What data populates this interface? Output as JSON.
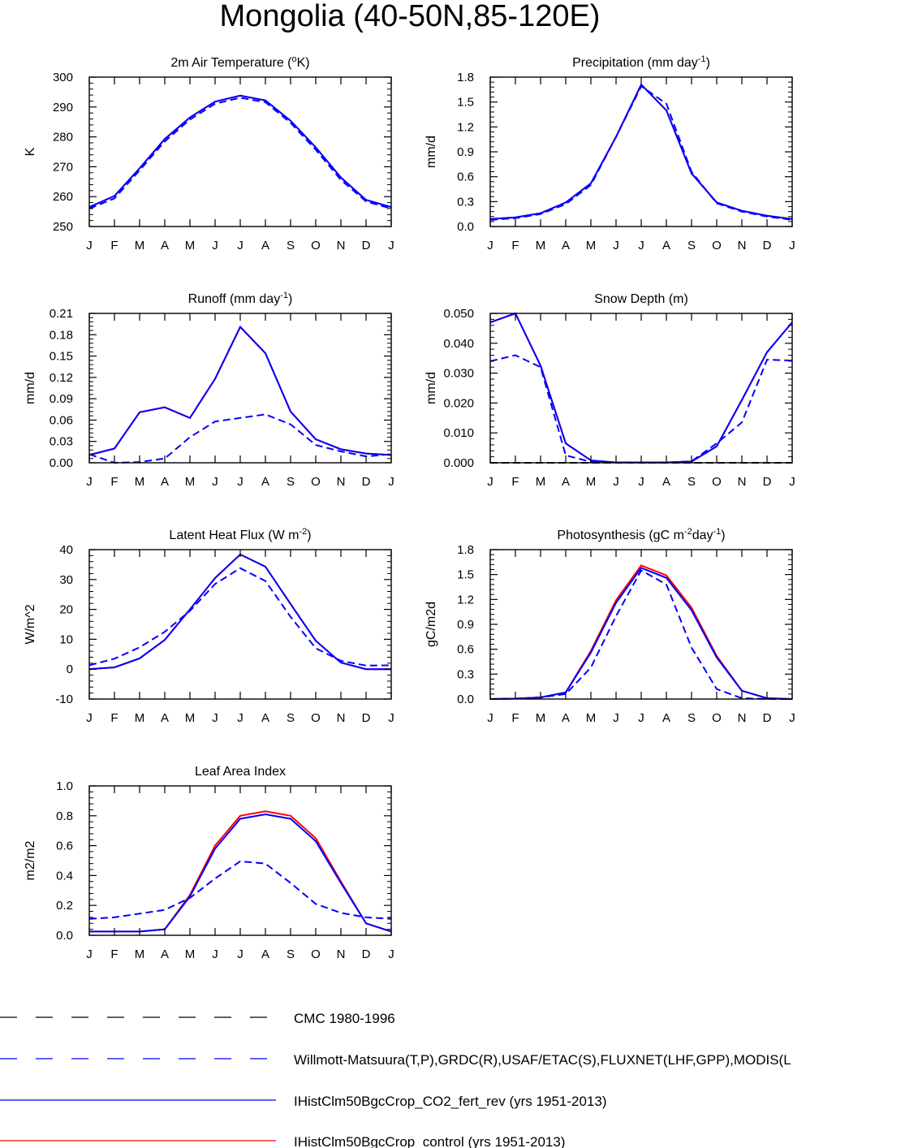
{
  "figure": {
    "title": "Mongolia (40-50N,85-120E)"
  },
  "colors": {
    "blue": "#0000ff",
    "red": "#ff0000",
    "black": "#000000"
  },
  "chart_data": [
    {
      "type": "line",
      "title": "2m Air Temperature (°K)",
      "title_parts": [
        "2m Air Temperature (",
        "o",
        "K)"
      ],
      "ylabel": "K",
      "categories": [
        "J",
        "F",
        "M",
        "A",
        "M",
        "J",
        "J",
        "A",
        "S",
        "O",
        "N",
        "D",
        "J"
      ],
      "ylim": [
        250,
        300
      ],
      "yticks": [
        250,
        260,
        270,
        280,
        290,
        300
      ],
      "ytick_labels": [
        "250",
        "260",
        "270",
        "280",
        "290",
        "300"
      ],
      "series": [
        {
          "name": "IHistClm50BgcCrop_control (yrs 1951-2013)",
          "color": "#ff0000",
          "dash": "solid",
          "values": [
            256.5,
            260.2,
            269.5,
            279.3,
            286.5,
            291.8,
            293.8,
            292.2,
            285.4,
            276.5,
            266.4,
            258.9,
            256.5
          ]
        },
        {
          "name": "IHistClm50BgcCrop_CO2_fert_rev (yrs 1951-2013)",
          "color": "#0000ff",
          "dash": "solid",
          "values": [
            256.5,
            260.2,
            269.5,
            279.3,
            286.5,
            291.8,
            293.8,
            292.2,
            285.4,
            276.5,
            266.4,
            258.9,
            256.5
          ]
        },
        {
          "name": "Willmott-Matsuura(T,P),GRDC(R),USAF/ETAC(S),FLUXNET(LHF,GPP),MODIS(L",
          "color": "#0000ff",
          "dash": "dashed",
          "values": [
            256.0,
            259.4,
            268.8,
            278.5,
            285.8,
            291.1,
            293.1,
            291.6,
            284.7,
            275.7,
            265.6,
            258.4,
            256.0
          ]
        }
      ]
    },
    {
      "type": "line",
      "title": "Precipitation (mm day-1)",
      "title_parts": [
        "Precipitation (mm day",
        "-1",
        ")"
      ],
      "ylabel": "mm/d",
      "categories": [
        "J",
        "F",
        "M",
        "A",
        "M",
        "J",
        "J",
        "A",
        "S",
        "O",
        "N",
        "D",
        "J"
      ],
      "ylim": [
        0.0,
        1.8
      ],
      "yticks": [
        0.0,
        0.3,
        0.6,
        0.9,
        1.2,
        1.5,
        1.8
      ],
      "ytick_labels": [
        "0.0",
        "0.3",
        "0.6",
        "0.9",
        "1.2",
        "1.5",
        "1.8"
      ],
      "series": [
        {
          "name": "IHistClm50BgcCrop_control (yrs 1951-2013)",
          "color": "#ff0000",
          "dash": "solid",
          "values": [
            0.09,
            0.11,
            0.16,
            0.29,
            0.52,
            1.08,
            1.71,
            1.4,
            0.64,
            0.29,
            0.19,
            0.13,
            0.09
          ]
        },
        {
          "name": "IHistClm50BgcCrop_CO2_fert_rev (yrs 1951-2013)",
          "color": "#0000ff",
          "dash": "solid",
          "values": [
            0.09,
            0.11,
            0.16,
            0.29,
            0.52,
            1.08,
            1.71,
            1.4,
            0.64,
            0.29,
            0.19,
            0.13,
            0.09
          ]
        },
        {
          "name": "Willmott-Matsuura(T,P),GRDC(R),USAF/ETAC(S),FLUXNET(LHF,GPP),MODIS(L",
          "color": "#0000ff",
          "dash": "dashed",
          "values": [
            0.08,
            0.1,
            0.15,
            0.27,
            0.5,
            1.08,
            1.69,
            1.48,
            0.66,
            0.28,
            0.18,
            0.12,
            0.08
          ]
        }
      ]
    },
    {
      "type": "line",
      "title": "Runoff (mm day-1)",
      "title_parts": [
        "Runoff (mm day",
        "-1",
        ")"
      ],
      "ylabel": "mm/d",
      "categories": [
        "J",
        "F",
        "M",
        "A",
        "M",
        "J",
        "J",
        "A",
        "S",
        "O",
        "N",
        "D",
        "J"
      ],
      "ylim": [
        0.0,
        0.21
      ],
      "yticks": [
        0.0,
        0.03,
        0.06,
        0.09,
        0.12,
        0.15,
        0.18,
        0.21
      ],
      "ytick_labels": [
        "0.00",
        "0.03",
        "0.06",
        "0.09",
        "0.12",
        "0.15",
        "0.18",
        "0.21"
      ],
      "series": [
        {
          "name": "IHistClm50BgcCrop_control (yrs 1951-2013)",
          "color": "#ff0000",
          "dash": "solid",
          "values": [
            0.011,
            0.02,
            0.071,
            0.078,
            0.063,
            0.118,
            0.191,
            0.154,
            0.072,
            0.033,
            0.019,
            0.013,
            0.011
          ]
        },
        {
          "name": "IHistClm50BgcCrop_CO2_fert_rev (yrs 1951-2013)",
          "color": "#0000ff",
          "dash": "solid",
          "values": [
            0.011,
            0.02,
            0.071,
            0.078,
            0.063,
            0.118,
            0.191,
            0.154,
            0.072,
            0.033,
            0.019,
            0.013,
            0.011
          ]
        },
        {
          "name": "Willmott-Matsuura(T,P),GRDC(R),USAF/ETAC(S),FLUXNET(LHF,GPP),MODIS(L",
          "color": "#0000ff",
          "dash": "dashed",
          "values": [
            0.012,
            0.0,
            0.001,
            0.006,
            0.036,
            0.058,
            0.063,
            0.068,
            0.054,
            0.025,
            0.016,
            0.009,
            0.012
          ]
        }
      ]
    },
    {
      "type": "line",
      "title": "Snow Depth (m)",
      "title_parts": [
        "Snow Depth (m)",
        "",
        ""
      ],
      "ylabel": "mm/d",
      "categories": [
        "J",
        "F",
        "M",
        "A",
        "M",
        "J",
        "J",
        "A",
        "S",
        "O",
        "N",
        "D",
        "J"
      ],
      "ylim": [
        0.0,
        0.05
      ],
      "yticks": [
        0.0,
        0.01,
        0.02,
        0.03,
        0.04,
        0.05
      ],
      "ytick_labels": [
        "0.000",
        "0.010",
        "0.020",
        "0.030",
        "0.040",
        "0.050"
      ],
      "series": [
        {
          "name": "CMC 1980-1996",
          "color": "#000000",
          "dash": "dashed",
          "values": [
            0.0,
            0.0,
            0.0,
            0.0,
            0.0,
            0.0,
            0.0,
            0.0,
            0.0,
            0.0,
            0.0,
            0.0,
            0.0
          ]
        },
        {
          "name": "IHistClm50BgcCrop_control (yrs 1951-2013)",
          "color": "#ff0000",
          "dash": "solid",
          "values": [
            0.047,
            0.05,
            0.0325,
            0.0065,
            0.0008,
            0.0001,
            0.0001,
            0.0001,
            0.0004,
            0.0055,
            0.021,
            0.037,
            0.047
          ]
        },
        {
          "name": "IHistClm50BgcCrop_CO2_fert_rev (yrs 1951-2013)",
          "color": "#0000ff",
          "dash": "solid",
          "values": [
            0.047,
            0.05,
            0.0325,
            0.0065,
            0.0008,
            0.0001,
            0.0001,
            0.0001,
            0.0004,
            0.0055,
            0.021,
            0.037,
            0.047
          ]
        },
        {
          "name": "Willmott-Matsuura(T,P),GRDC(R),USAF/ETAC(S),FLUXNET(LHF,GPP),MODIS(L",
          "color": "#0000ff",
          "dash": "dashed",
          "values": [
            0.034,
            0.036,
            0.032,
            0.0025,
            0.0003,
            0.0001,
            0.0001,
            0.0001,
            0.0005,
            0.0065,
            0.0135,
            0.0345,
            0.0342
          ]
        }
      ]
    },
    {
      "type": "line",
      "title": "Latent Heat Flux (W m-2)",
      "title_parts": [
        "Latent Heat Flux (W m",
        "-2",
        ")"
      ],
      "ylabel": "W/m^2",
      "categories": [
        "J",
        "F",
        "M",
        "A",
        "M",
        "J",
        "J",
        "A",
        "S",
        "O",
        "N",
        "D",
        "J"
      ],
      "ylim": [
        -10,
        40
      ],
      "yticks": [
        -10,
        0,
        10,
        20,
        30,
        40
      ],
      "ytick_labels": [
        "-10",
        "0",
        "10",
        "20",
        "30",
        "40"
      ],
      "series": [
        {
          "name": "IHistClm50BgcCrop_control (yrs 1951-2013)",
          "color": "#ff0000",
          "dash": "solid",
          "values": [
            0.0,
            0.6,
            3.6,
            9.8,
            20.0,
            30.5,
            38.4,
            34.3,
            21.8,
            9.5,
            2.2,
            0.0,
            0.0
          ]
        },
        {
          "name": "IHistClm50BgcCrop_CO2_fert_rev (yrs 1951-2013)",
          "color": "#0000ff",
          "dash": "solid",
          "values": [
            0.0,
            0.6,
            3.6,
            9.8,
            20.0,
            30.5,
            38.4,
            34.3,
            21.8,
            9.5,
            2.2,
            0.0,
            0.0
          ]
        },
        {
          "name": "Willmott-Matsuura(T,P),GRDC(R),USAF/ETAC(S),FLUXNET(LHF,GPP),MODIS(L",
          "color": "#0000ff",
          "dash": "dashed",
          "values": [
            1.3,
            3.5,
            7.3,
            12.5,
            19.5,
            28.5,
            33.8,
            29.5,
            17.5,
            7.0,
            2.8,
            1.2,
            1.3
          ]
        }
      ]
    },
    {
      "type": "line",
      "title": "Photosynthesis (gC m-2day-1)",
      "title_parts": [
        "Photosynthesis (gC m",
        "-2",
        "day",
        "-1",
        ")"
      ],
      "ylabel": "gC/m2d",
      "categories": [
        "J",
        "F",
        "M",
        "A",
        "M",
        "J",
        "J",
        "A",
        "S",
        "O",
        "N",
        "D",
        "J"
      ],
      "ylim": [
        0.0,
        1.8
      ],
      "yticks": [
        0.0,
        0.3,
        0.6,
        0.9,
        1.2,
        1.5,
        1.8
      ],
      "ytick_labels": [
        "0.0",
        "0.3",
        "0.6",
        "0.9",
        "1.2",
        "1.5",
        "1.8"
      ],
      "series": [
        {
          "name": "IHistClm50BgcCrop_control (yrs 1951-2013)",
          "color": "#ff0000",
          "dash": "solid",
          "values": [
            0.0,
            0.005,
            0.02,
            0.08,
            0.58,
            1.19,
            1.61,
            1.49,
            1.1,
            0.52,
            0.1,
            0.01,
            0.0
          ]
        },
        {
          "name": "IHistClm50BgcCrop_CO2_fert_rev (yrs 1951-2013)",
          "color": "#0000ff",
          "dash": "solid",
          "values": [
            0.0,
            0.005,
            0.02,
            0.08,
            0.56,
            1.16,
            1.58,
            1.46,
            1.07,
            0.5,
            0.1,
            0.01,
            0.0
          ]
        },
        {
          "name": "Willmott-Matsuura(T,P),GRDC(R),USAF/ETAC(S),FLUXNET(LHF,GPP),MODIS(L",
          "color": "#0000ff",
          "dash": "dashed",
          "values": [
            0.0,
            0.005,
            0.02,
            0.06,
            0.38,
            1.0,
            1.55,
            1.38,
            0.62,
            0.12,
            0.01,
            0.0,
            0.0
          ]
        }
      ]
    },
    {
      "type": "line",
      "title": "Leaf Area Index",
      "title_parts": [
        "Leaf Area Index",
        "",
        ""
      ],
      "ylabel": "m2/m2",
      "categories": [
        "J",
        "F",
        "M",
        "A",
        "M",
        "J",
        "J",
        "A",
        "S",
        "O",
        "N",
        "D",
        "J"
      ],
      "ylim": [
        0.0,
        1.0
      ],
      "yticks": [
        0.0,
        0.2,
        0.4,
        0.6,
        0.8,
        1.0
      ],
      "ytick_labels": [
        "0.0",
        "0.2",
        "0.4",
        "0.6",
        "0.8",
        "1.0"
      ],
      "series": [
        {
          "name": "IHistClm50BgcCrop_control (yrs 1951-2013)",
          "color": "#ff0000",
          "dash": "solid",
          "values": [
            0.025,
            0.025,
            0.025,
            0.04,
            0.27,
            0.6,
            0.8,
            0.83,
            0.8,
            0.65,
            0.36,
            0.08,
            0.025
          ]
        },
        {
          "name": "IHistClm50BgcCrop_CO2_fert_rev (yrs 1951-2013)",
          "color": "#0000ff",
          "dash": "solid",
          "values": [
            0.025,
            0.025,
            0.025,
            0.04,
            0.26,
            0.58,
            0.78,
            0.81,
            0.78,
            0.63,
            0.35,
            0.08,
            0.025
          ]
        },
        {
          "name": "Willmott-Matsuura(T,P),GRDC(R),USAF/ETAC(S),FLUXNET(LHF,GPP),MODIS(L",
          "color": "#0000ff",
          "dash": "dashed",
          "values": [
            0.11,
            0.12,
            0.145,
            0.17,
            0.25,
            0.38,
            0.495,
            0.48,
            0.35,
            0.21,
            0.15,
            0.12,
            0.11
          ]
        }
      ]
    }
  ],
  "legend": {
    "items": [
      {
        "label": "CMC 1980-1996",
        "color": "#000000",
        "dash": "dashed"
      },
      {
        "label": "Willmott-Matsuura(T,P),GRDC(R),USAF/ETAC(S),FLUXNET(LHF,GPP),MODIS(L",
        "color": "#0000ff",
        "dash": "dashed"
      },
      {
        "label": "IHistClm50BgcCrop_CO2_fert_rev (yrs 1951-2013)",
        "color": "#0000ff",
        "dash": "solid"
      },
      {
        "label": "IHistClm50BgcCrop_control (yrs 1951-2013)",
        "color": "#ff0000",
        "dash": "solid"
      }
    ]
  }
}
